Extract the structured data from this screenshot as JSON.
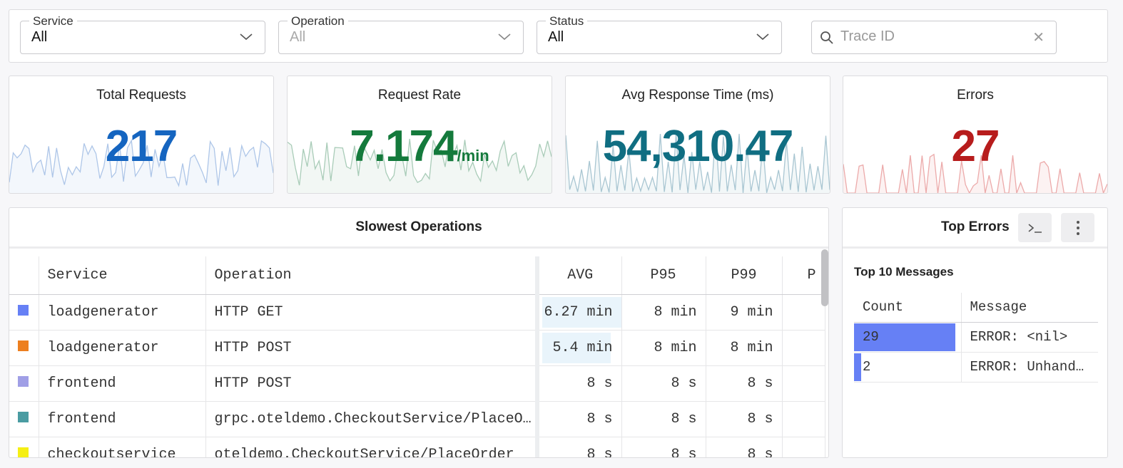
{
  "filters": {
    "service": {
      "label": "Service",
      "value": "All"
    },
    "operation": {
      "label": "Operation",
      "value": "All"
    },
    "status": {
      "label": "Status",
      "value": "All"
    },
    "search": {
      "placeholder": "Trace ID"
    }
  },
  "stats": [
    {
      "title": "Total Requests",
      "value": "217",
      "unit": "",
      "color": "#1565c0",
      "spark": "#aec6e8"
    },
    {
      "title": "Request Rate",
      "value": "7.174",
      "unit": "/min",
      "color": "#147a3c",
      "spark": "#a9ccb8"
    },
    {
      "title": "Avg Response Time (ms)",
      "value": "54,310.47",
      "unit": "",
      "color": "#106e82",
      "spark": "#a9c6d2"
    },
    {
      "title": "Errors",
      "value": "27",
      "unit": "",
      "color": "#b71c1c",
      "spark": "#ecaaaa"
    }
  ],
  "slowest": {
    "title": "Slowest Operations",
    "columns": [
      "Service",
      "Operation",
      "AVG",
      "P95",
      "P99",
      "P"
    ],
    "rows": [
      {
        "color": "#6680f5",
        "service": "loadgenerator",
        "operation": "HTTP GET",
        "avg": "6.27 min",
        "p95": "8 min",
        "p99": "9 min",
        "avg_frac": 1.0
      },
      {
        "color": "#ed7f1f",
        "service": "loadgenerator",
        "operation": "HTTP POST",
        "avg": "5.4 min",
        "p95": "8 min",
        "p99": "8 min",
        "avg_frac": 0.86
      },
      {
        "color": "#a09fe6",
        "service": "frontend",
        "operation": "HTTP POST",
        "avg": "8 s",
        "p95": "8 s",
        "p99": "8 s",
        "avg_frac": 0
      },
      {
        "color": "#4a9ca2",
        "service": "frontend",
        "operation": "grpc.oteldemo.CheckoutService/PlaceO…",
        "avg": "8 s",
        "p95": "8 s",
        "p99": "8 s",
        "avg_frac": 0
      },
      {
        "color": "#f5ef14",
        "service": "checkoutservice",
        "operation": "oteldemo.CheckoutService/PlaceOrder",
        "avg": "8 s",
        "p95": "8 s",
        "p99": "8 s",
        "avg_frac": 0
      }
    ]
  },
  "top_errors": {
    "title": "Top Errors",
    "subtitle": "Top 10 Messages",
    "columns": [
      "Count",
      "Message"
    ],
    "rows": [
      {
        "count": "29",
        "message": "ERROR: <nil>",
        "frac": 1.0
      },
      {
        "count": "2",
        "message": "ERROR: Unhand…",
        "frac": 0.07
      }
    ],
    "icons": [
      "terminal-icon",
      "more-vertical-icon"
    ]
  }
}
